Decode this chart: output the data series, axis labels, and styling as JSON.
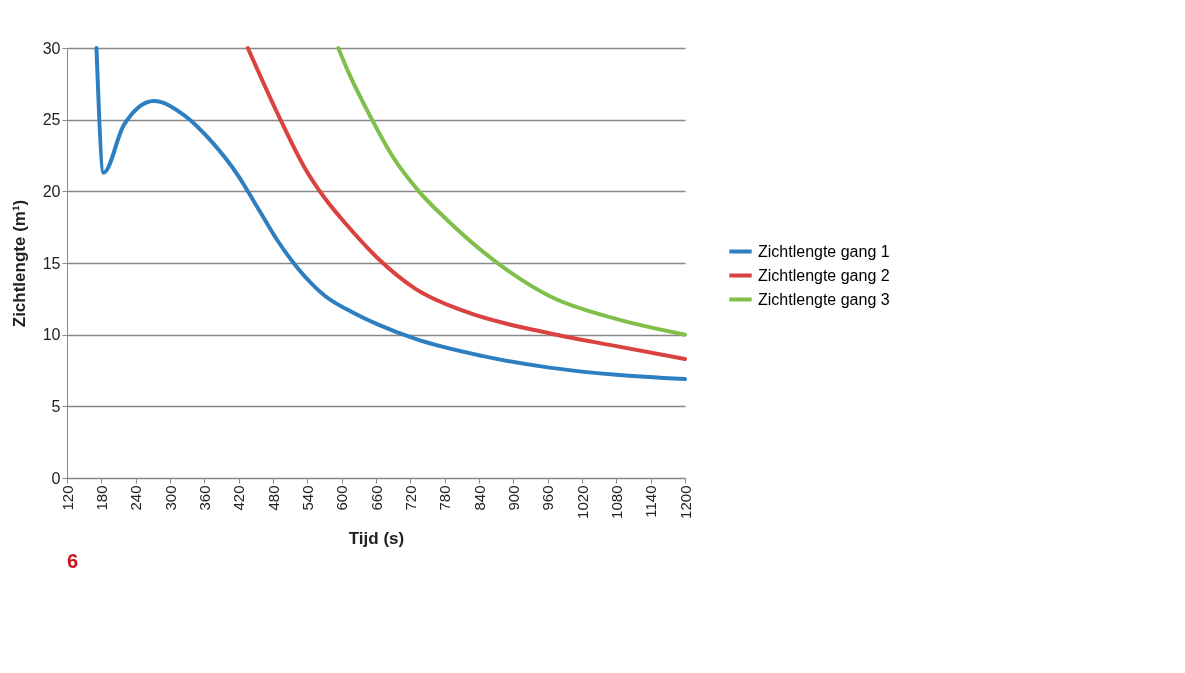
{
  "chart_data": {
    "type": "line",
    "xlabel": "Tijd (s)",
    "ylabel": "Zichtlengte (m¹)",
    "xlim": [
      120,
      1200
    ],
    "xticks": [
      120,
      180,
      240,
      300,
      360,
      420,
      480,
      540,
      600,
      660,
      720,
      780,
      840,
      900,
      960,
      {
        "value": 1020,
        "label": "1020"
      },
      {
        "value": 1080,
        "label": "1080"
      },
      {
        "value": 1140,
        "label": "1140"
      },
      {
        "value": 1200,
        "label": "1200"
      }
    ],
    "ylim": [
      0,
      30
    ],
    "yticks": [
      0,
      5,
      10,
      15,
      20,
      25,
      30
    ],
    "grid": "y",
    "legend": "right",
    "marker": "none",
    "line_style": "solid",
    "annotations": [
      "6"
    ],
    "series": [
      {
        "name": "Zichtlengte gang 1",
        "color": "#2e7fc1",
        "x": [
          171.5,
          184,
          219,
          272,
          325,
          372,
          419,
          454,
          489,
          524,
          571,
          617,
          664,
          729,
          847,
          963,
          1080,
          1200
        ],
        "values": [
          30,
          21.3,
          24.6,
          26.3,
          25.3,
          23.5,
          21.1,
          18.8,
          16.5,
          14.6,
          12.7,
          11.6,
          10.7,
          9.7,
          8.5,
          7.7,
          7.2,
          6.9
        ]
      },
      {
        "name": "Zichtlengte gang 2",
        "color": "#d9423f",
        "x": [
          436,
          493,
          536,
          571,
          608,
          664,
          729,
          817,
          963,
          1080,
          1200
        ],
        "values": [
          30,
          25,
          21.6,
          19.5,
          17.7,
          15.3,
          13.2,
          11.6,
          10.1,
          9.2,
          8.3
        ]
      },
      {
        "name": "Zichtlengte gang 3",
        "color": "#7fbf4a",
        "x": [
          594,
          612,
          653,
          688,
          735,
          787,
          869,
          963,
          1080,
          1200
        ],
        "values": [
          30,
          28.3,
          25,
          22.5,
          20,
          17.9,
          15.1,
          12.7,
          11.1,
          10
        ]
      }
    ]
  }
}
